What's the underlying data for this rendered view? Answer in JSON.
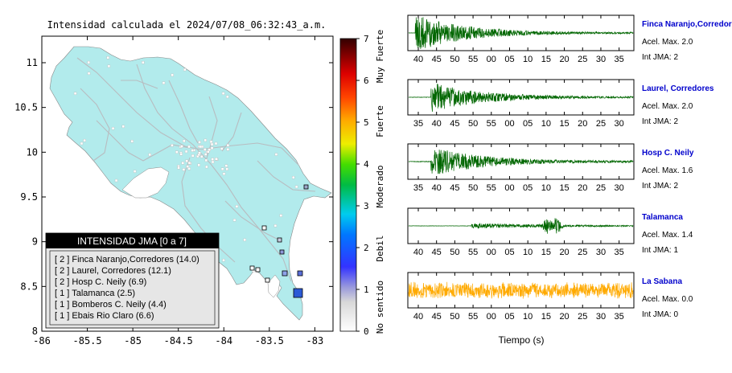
{
  "map": {
    "title": "Intensidad calculada el 2024/07/08_06:32:43_a.m.",
    "x_ticks": [
      "-86",
      "-85.5",
      "-85",
      "-84.5",
      "-84",
      "-83.5",
      "-83"
    ],
    "y_ticks": [
      "8",
      "8.5",
      "9",
      "9.5",
      "10",
      "10.5",
      "11"
    ],
    "land_color": "#b2ebec",
    "legend_title": "INTENSIDAD JMA [0 a 7]",
    "legend_items": [
      "[ 2 ] Finca Naranjo,Corredores (14.0)",
      "[ 2 ] Laurel, Corredores (12.1)",
      "[ 2 ] Hosp C. Neily (6.9)",
      "[ 1 ] Talamanca (2.5)",
      "[ 1 ] Bomberos C. Neily (4.4)",
      "[ 1 ] Ebais Rio Claro (6.6)"
    ]
  },
  "colorbar": {
    "ticks": [
      "0",
      "1",
      "2",
      "3",
      "4",
      "5",
      "6",
      "7"
    ],
    "labels": [
      "No sentido",
      "Debil",
      "Moderado",
      "Fuerte",
      "Muy Fuerte"
    ]
  },
  "traces": {
    "xlabel": "Tiempo (s)",
    "stations": [
      {
        "name": "Finca Naranjo,Corredor",
        "accel": "Acel. Max. 2.0",
        "jma": "Int JMA: 2",
        "color": "#006600",
        "ticks": [
          "40",
          "45",
          "50",
          "55",
          "00",
          "05",
          "10",
          "15",
          "20",
          "25",
          "30",
          "35"
        ]
      },
      {
        "name": "Laurel, Corredores",
        "accel": "Acel. Max. 2.0",
        "jma": "Int JMA: 2",
        "color": "#006600",
        "ticks": [
          "35",
          "40",
          "45",
          "50",
          "55",
          "00",
          "05",
          "10",
          "15",
          "20",
          "25",
          "30"
        ]
      },
      {
        "name": "Hosp C. Neily",
        "accel": "Acel. Max. 1.6",
        "jma": "Int JMA: 2",
        "color": "#006600",
        "ticks": [
          "35",
          "40",
          "45",
          "50",
          "55",
          "00",
          "05",
          "10",
          "15",
          "20",
          "25",
          "30"
        ]
      },
      {
        "name": "Talamanca",
        "accel": "Acel. Max. 1.4",
        "jma": "Int JMA: 1",
        "color": "#006600",
        "ticks": [
          "40",
          "45",
          "50",
          "55",
          "00",
          "05",
          "10",
          "15",
          "20",
          "25",
          "30",
          "35"
        ]
      },
      {
        "name": "La Sabana",
        "accel": "Acel. Max. 0.0",
        "jma": "Int JMA: 0",
        "color": "#ffaa00",
        "ticks": [
          "40",
          "45",
          "50",
          "55",
          "00",
          "05",
          "10",
          "15",
          "20",
          "25",
          "30",
          "35"
        ]
      }
    ]
  }
}
